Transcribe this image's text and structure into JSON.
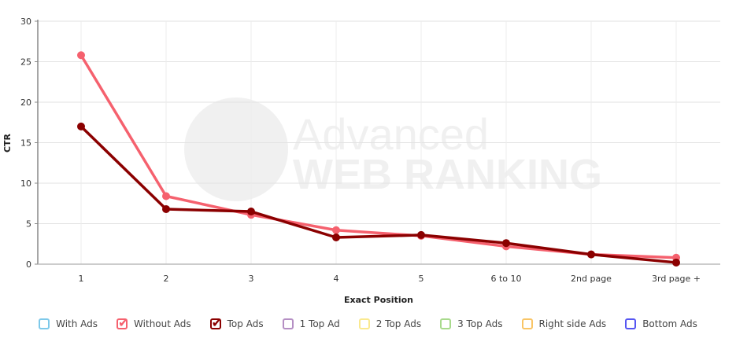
{
  "watermark": {
    "line1": "Advanced",
    "line2": "WEB RANKING"
  },
  "chart_data": {
    "type": "line",
    "title": "",
    "xlabel": "Exact Position",
    "ylabel": "CTR",
    "ylim": [
      0,
      30
    ],
    "yticks": [
      0,
      5,
      10,
      15,
      20,
      25,
      30
    ],
    "grid": true,
    "legend_position": "bottom",
    "categories": [
      "1",
      "2",
      "3",
      "4",
      "5",
      "6 to 10",
      "2nd page",
      "3rd page +"
    ],
    "series": [
      {
        "name": "Without Ads",
        "color": "#f5616e",
        "values": [
          25.8,
          8.4,
          6.1,
          4.2,
          3.5,
          2.2,
          1.2,
          0.8
        ]
      },
      {
        "name": "Top Ads",
        "color": "#8b0000",
        "values": [
          17.0,
          6.8,
          6.5,
          3.3,
          3.6,
          2.6,
          1.2,
          0.2
        ]
      }
    ]
  },
  "legend": [
    {
      "label": "With Ads",
      "color": "#7ec9ea",
      "checked": false
    },
    {
      "label": "Without Ads",
      "color": "#f5616e",
      "checked": true
    },
    {
      "label": "Top Ads",
      "color": "#8b0000",
      "checked": true
    },
    {
      "label": "1 Top Ad",
      "color": "#b58fc4",
      "checked": false
    },
    {
      "label": "2 Top Ads",
      "color": "#fae98f",
      "checked": false
    },
    {
      "label": "3 Top Ads",
      "color": "#a8da8c",
      "checked": false
    },
    {
      "label": "Right side Ads",
      "color": "#f9c566",
      "checked": false
    },
    {
      "label": "Bottom Ads",
      "color": "#5656f2",
      "checked": false
    }
  ]
}
